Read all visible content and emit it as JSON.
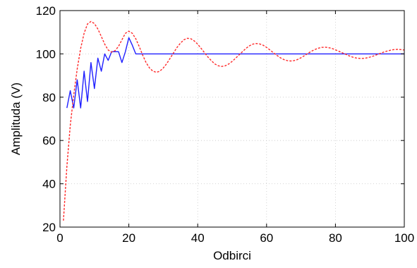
{
  "chart_data": {
    "type": "line",
    "title": "",
    "xlabel": "Odbirci",
    "ylabel": "Amplituda (V)",
    "xlim": [
      0,
      100
    ],
    "ylim": [
      20,
      120
    ],
    "xticks": [
      0,
      20,
      40,
      60,
      80,
      100
    ],
    "yticks": [
      20,
      40,
      60,
      80,
      100,
      120
    ],
    "grid": true,
    "series": [
      {
        "color": "#1f1fff",
        "style": "solid",
        "x": [
          2,
          3,
          4,
          5,
          6,
          7,
          8,
          9,
          10,
          11,
          12,
          13,
          14,
          15,
          16,
          17,
          18,
          19,
          20,
          21,
          22,
          100
        ],
        "y": [
          75,
          83,
          75,
          88,
          75,
          92,
          78,
          96,
          84,
          98,
          92,
          100,
          97,
          101,
          101,
          101,
          96,
          101,
          107.5,
          104,
          100,
          100
        ]
      },
      {
        "color": "#ff2a2a",
        "style": "dashed",
        "x": [
          1,
          2,
          3,
          4,
          5,
          6,
          7,
          8,
          9,
          10,
          11,
          12,
          13,
          14,
          15,
          16,
          17,
          18,
          19,
          20,
          21,
          22,
          23,
          24,
          25,
          26,
          27,
          28,
          29,
          30,
          31,
          32,
          33,
          34,
          35,
          36,
          37,
          38,
          39,
          40,
          41,
          42,
          43,
          44,
          45,
          46,
          47,
          48,
          49,
          50,
          51,
          52,
          53,
          54,
          55,
          56,
          57,
          58,
          59,
          60,
          61,
          62,
          63,
          64,
          65,
          66,
          67,
          68,
          69,
          70,
          71,
          72,
          73,
          74,
          75,
          76,
          77,
          78,
          79,
          80,
          81,
          82,
          83,
          84,
          85,
          86,
          87,
          88,
          89,
          90,
          91,
          92,
          93,
          94,
          95,
          96,
          97,
          98,
          99,
          100
        ],
        "y": [
          23,
          48,
          67,
          81,
          93,
          102.5,
          109.5,
          113.8,
          115,
          114,
          111.5,
          108,
          104.5,
          101.8,
          100.8,
          101.5,
          103.5,
          106.5,
          109.5,
          110.5,
          109.5,
          107,
          103.5,
          99.5,
          96,
          93.5,
          92,
          91.5,
          92,
          93.5,
          95.5,
          98,
          100.5,
          103,
          105,
          106.5,
          107.2,
          107,
          106,
          104.5,
          102.5,
          100.5,
          98.5,
          96.8,
          95.3,
          94.5,
          94.2,
          94.5,
          95.3,
          96.5,
          98,
          99.5,
          101,
          102.5,
          103.7,
          104.5,
          104.8,
          104.6,
          104,
          103,
          101.8,
          100.5,
          99.3,
          98.2,
          97.4,
          96.9,
          96.7,
          96.9,
          97.4,
          98.2,
          99.2,
          100.2,
          101.2,
          102,
          102.6,
          103,
          103.1,
          102.9,
          102.5,
          101.9,
          101.2,
          100.5,
          99.8,
          99.1,
          98.5,
          98.1,
          97.9,
          97.9,
          98.1,
          98.5,
          99,
          99.6,
          100.2,
          100.8,
          101.3,
          101.7,
          102,
          102.1,
          102,
          101.8
        ]
      }
    ]
  }
}
